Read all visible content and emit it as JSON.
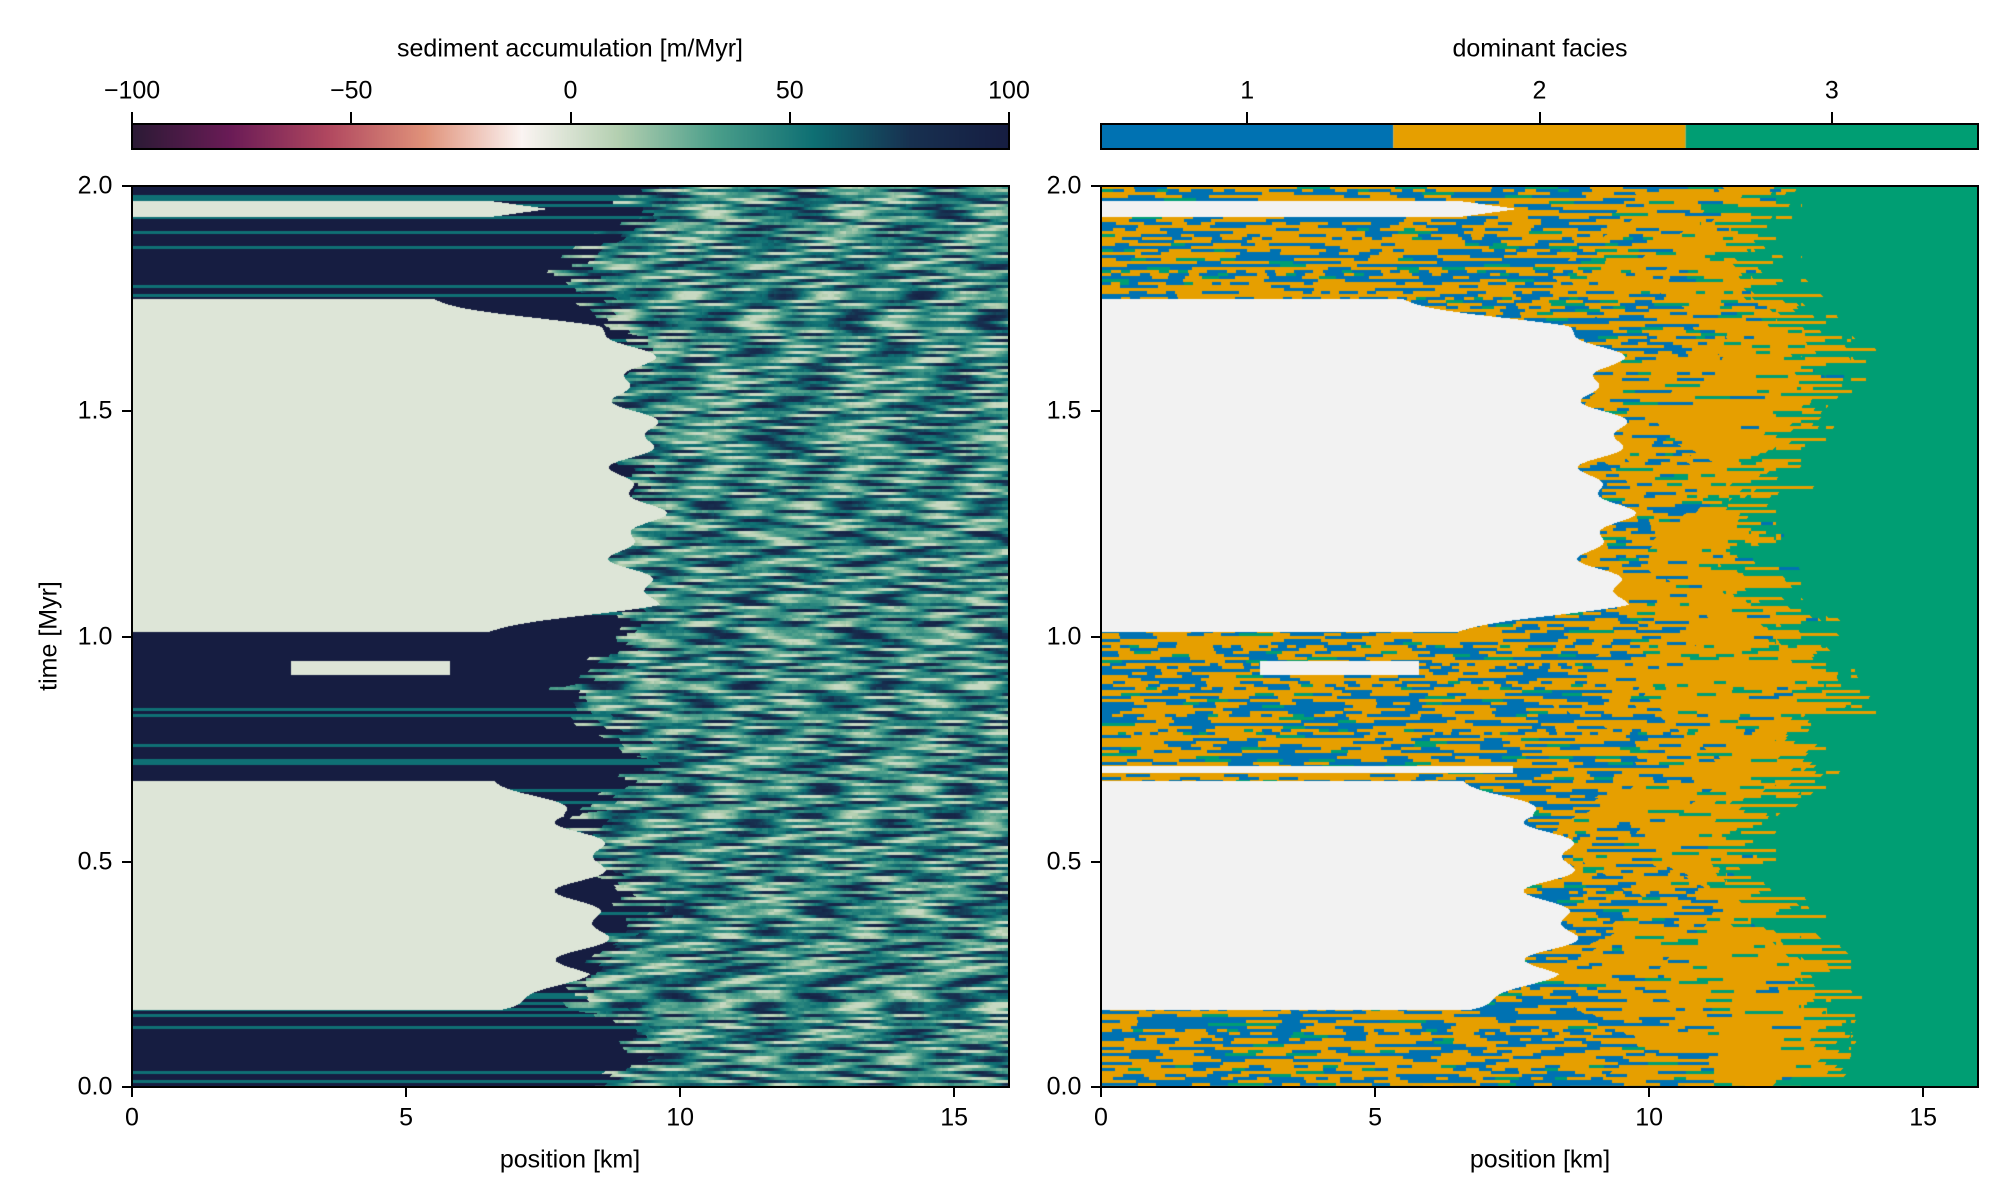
{
  "chart_data": [
    {
      "type": "heatmap",
      "colorbar": {
        "label": "sediment accumulation [m/Myr]",
        "ticks": [
          "−100",
          "−50",
          "0",
          "50",
          "100"
        ],
        "tick_values": [
          -100,
          -50,
          0,
          50,
          100
        ],
        "range": [
          -100,
          100
        ],
        "colormap": [
          "#2b1a35",
          "#6a1b56",
          "#b0475f",
          "#e0927a",
          "#fbf4f2",
          "#b3cfb0",
          "#4a9e8a",
          "#0e6f73",
          "#173050",
          "#161d41"
        ],
        "position": "top"
      },
      "xlabel": "position [km]",
      "ylabel": "time [Myr]",
      "xlim": [
        0,
        16
      ],
      "ylim": [
        0,
        2.0
      ],
      "xticks": [
        "0",
        "5",
        "10",
        "15"
      ],
      "xtick_values": [
        0,
        5,
        10,
        15
      ],
      "yticks": [
        "0.0",
        "0.5",
        "1.0",
        "1.5",
        "2.0"
      ],
      "ytick_values": [
        0,
        0.5,
        1.0,
        1.5,
        2.0
      ],
      "grid": false,
      "description_of_field": {
        "no_deposition_intervals_myr": [
          [
            0.17,
            0.68
          ],
          [
            1.01,
            1.75
          ]
        ],
        "high_accumulation_band_km": [
          0,
          9
        ],
        "moderate_accumulation_band_km": [
          9,
          16
        ]
      }
    },
    {
      "type": "heatmap",
      "colorbar": {
        "label": "dominant facies",
        "ticks": [
          "1",
          "2",
          "3"
        ],
        "tick_values": [
          1,
          2,
          3
        ],
        "range": [
          0.5,
          3.5
        ],
        "categories": [
          {
            "value": 1,
            "color": "#0072b2"
          },
          {
            "value": 2,
            "color": "#e69f00"
          },
          {
            "value": 3,
            "color": "#009e73"
          }
        ],
        "no_data_color": "#f2f2f2",
        "position": "top"
      },
      "xlabel": "position [km]",
      "xlim": [
        0,
        16
      ],
      "ylim": [
        0,
        2.0
      ],
      "xticks": [
        "0",
        "5",
        "10",
        "15"
      ],
      "xtick_values": [
        0,
        5,
        10,
        15
      ],
      "yticks": [
        "0.0",
        "0.5",
        "1.0",
        "1.5",
        "2.0"
      ],
      "ytick_values": [
        0,
        0.5,
        1.0,
        1.5,
        2.0
      ],
      "grid": false
    }
  ]
}
